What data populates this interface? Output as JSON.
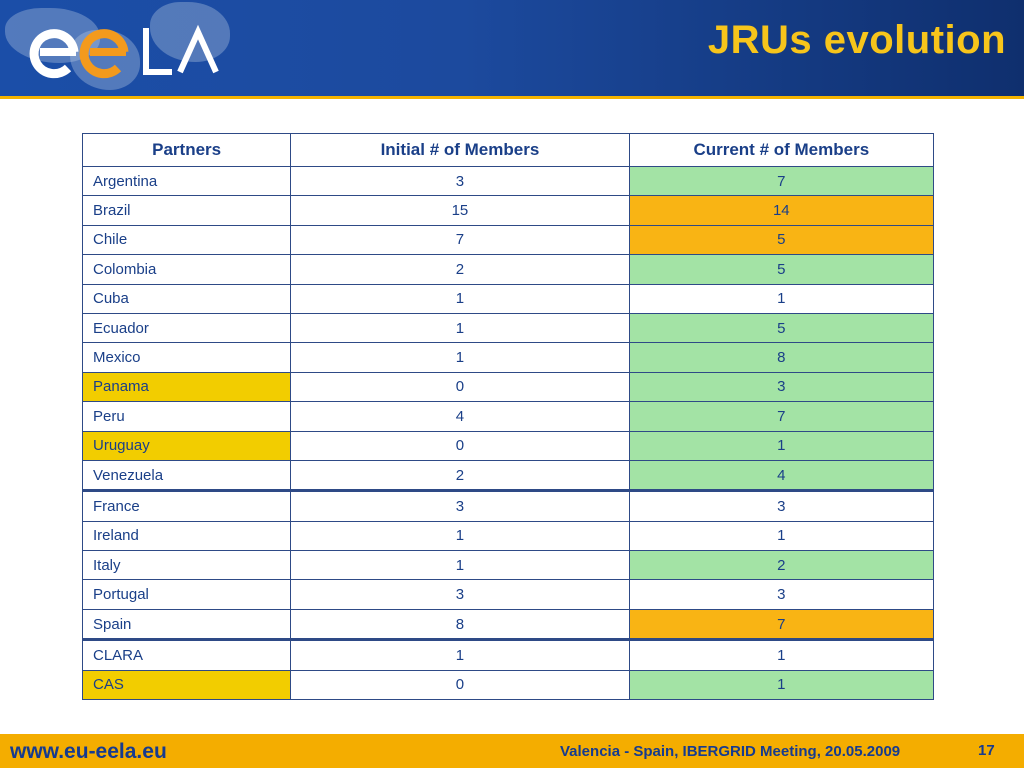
{
  "header": {
    "title": "JRUs evolution",
    "logo_name": "eela-logo"
  },
  "colors": {
    "header_blue": "#1b4ea8",
    "title_yellow": "#f7c51b",
    "increase_green": "#a3e3a5",
    "decrease_orange": "#f9b414",
    "new_partner_yellow": "#f2cd00",
    "footer_orange": "#f4ad00"
  },
  "table": {
    "columns": [
      "Partners",
      "Initial # of Members",
      "Current # of Members"
    ],
    "rows": [
      {
        "partner": "Argentina",
        "initial": "3",
        "current": "7",
        "current_status": "increase",
        "partner_status": ""
      },
      {
        "partner": "Brazil",
        "initial": "15",
        "current": "14",
        "current_status": "decrease",
        "partner_status": ""
      },
      {
        "partner": "Chile",
        "initial": "7",
        "current": "5",
        "current_status": "decrease",
        "partner_status": ""
      },
      {
        "partner": "Colombia",
        "initial": "2",
        "current": "5",
        "current_status": "increase",
        "partner_status": ""
      },
      {
        "partner": "Cuba",
        "initial": "1",
        "current": "1",
        "current_status": "same",
        "partner_status": ""
      },
      {
        "partner": "Ecuador",
        "initial": "1",
        "current": "5",
        "current_status": "increase",
        "partner_status": ""
      },
      {
        "partner": "Mexico",
        "initial": "1",
        "current": "8",
        "current_status": "increase",
        "partner_status": ""
      },
      {
        "partner": "Panama",
        "initial": "0",
        "current": "3",
        "current_status": "increase",
        "partner_status": "new"
      },
      {
        "partner": "Peru",
        "initial": "4",
        "current": "7",
        "current_status": "increase",
        "partner_status": ""
      },
      {
        "partner": "Uruguay",
        "initial": "0",
        "current": "1",
        "current_status": "increase",
        "partner_status": "new"
      },
      {
        "partner": "Venezuela",
        "initial": "2",
        "current": "4",
        "current_status": "increase",
        "partner_status": ""
      },
      {
        "partner": "France",
        "initial": "3",
        "current": "3",
        "current_status": "same",
        "partner_status": ""
      },
      {
        "partner": "Ireland",
        "initial": "1",
        "current": "1",
        "current_status": "same",
        "partner_status": ""
      },
      {
        "partner": "Italy",
        "initial": "1",
        "current": "2",
        "current_status": "increase",
        "partner_status": ""
      },
      {
        "partner": "Portugal",
        "initial": "3",
        "current": "3",
        "current_status": "same",
        "partner_status": ""
      },
      {
        "partner": "Spain",
        "initial": "8",
        "current": "7",
        "current_status": "decrease",
        "partner_status": ""
      },
      {
        "partner": "CLARA",
        "initial": "1",
        "current": "1",
        "current_status": "same",
        "partner_status": ""
      },
      {
        "partner": "CAS",
        "initial": "0",
        "current": "1",
        "current_status": "increase",
        "partner_status": "new"
      }
    ],
    "group_start_rows": [
      "France",
      "CLARA"
    ]
  },
  "footer": {
    "url": "www.eu-eela.eu",
    "meeting": "Valencia - Spain, IBERGRID Meeting, 20.05.2009",
    "page_number": "17"
  }
}
